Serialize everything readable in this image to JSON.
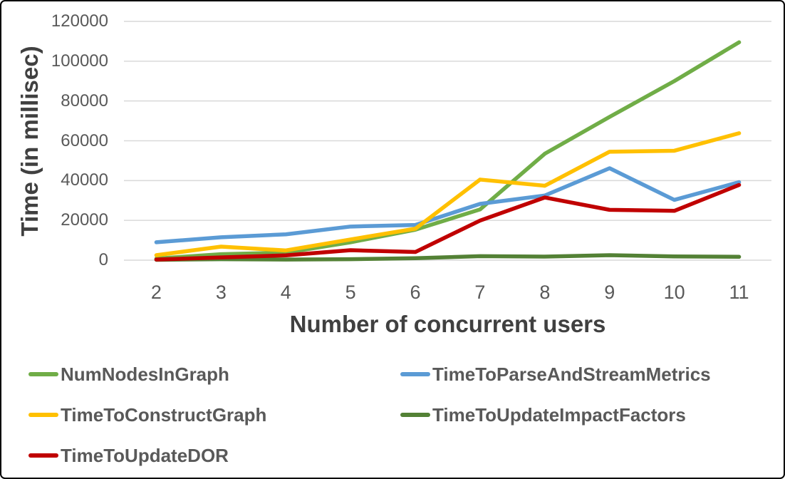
{
  "chart_data": {
    "type": "line",
    "title": "",
    "xlabel": "Number of concurrent users",
    "ylabel": "Time (in millisec)",
    "x": [
      2,
      3,
      4,
      5,
      6,
      7,
      8,
      9,
      10,
      11
    ],
    "ylim": [
      0,
      120000
    ],
    "ytick_step": 20000,
    "grid": true,
    "legend_position": "bottom, two columns",
    "series": [
      {
        "name": "NumNodesInGraph",
        "color": "#70AD47",
        "values": [
          800,
          3000,
          3800,
          9000,
          15300,
          25500,
          53500,
          72000,
          90000,
          109500
        ]
      },
      {
        "name": "TimeToParseAndStreamMetrics",
        "color": "#5B9BD5",
        "values": [
          9000,
          11500,
          13000,
          16900,
          17700,
          28300,
          32500,
          46200,
          30300,
          39200
        ]
      },
      {
        "name": "TimeToConstructGraph",
        "color": "#FFC000",
        "values": [
          2500,
          6800,
          4900,
          10400,
          15800,
          40500,
          37400,
          54500,
          55000,
          63800
        ]
      },
      {
        "name": "TimeToUpdateImpactFactors",
        "color": "#538135",
        "values": [
          200,
          500,
          300,
          500,
          1000,
          2000,
          1800,
          2500,
          1900,
          1700
        ]
      },
      {
        "name": "TimeToUpdateDOR",
        "color": "#C00000",
        "values": [
          300,
          1400,
          2400,
          5000,
          4100,
          19900,
          31500,
          25300,
          24800,
          37800
        ]
      }
    ]
  },
  "colors": {
    "gridline": "#D9D9D9",
    "tick_text": "#595959",
    "axis_title_text": "#404040",
    "frame_border": "#000000",
    "background": "#FFFFFF"
  }
}
